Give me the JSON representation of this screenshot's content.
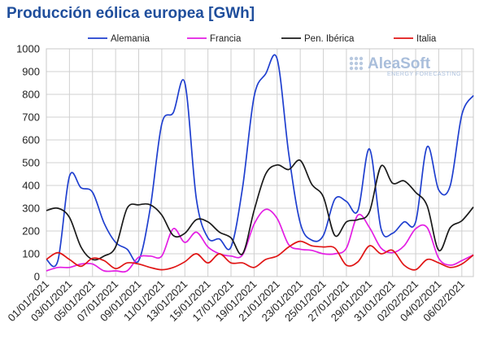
{
  "title": "Producción eólica europea [GWh]",
  "logo": {
    "name": "AleaSoft",
    "tagline": "ENERGY FORECASTING"
  },
  "chart_data": {
    "type": "line",
    "title": "Producción eólica europea [GWh]",
    "xlabel": "",
    "ylabel": "",
    "ylim": [
      0,
      1000
    ],
    "yticks": [
      0,
      100,
      200,
      300,
      400,
      500,
      600,
      700,
      800,
      900,
      1000
    ],
    "grid": true,
    "legend_position": "top",
    "x": [
      "01/01/2021",
      "02/01/2021",
      "03/01/2021",
      "04/01/2021",
      "05/01/2021",
      "06/01/2021",
      "07/01/2021",
      "08/01/2021",
      "09/01/2021",
      "10/01/2021",
      "11/01/2021",
      "12/01/2021",
      "13/01/2021",
      "14/01/2021",
      "15/01/2021",
      "16/01/2021",
      "17/01/2021",
      "18/01/2021",
      "19/01/2021",
      "20/01/2021",
      "21/01/2021",
      "22/01/2021",
      "23/01/2021",
      "24/01/2021",
      "25/01/2021",
      "26/01/2021",
      "27/01/2021",
      "28/01/2021",
      "29/01/2021",
      "30/01/2021",
      "31/01/2021",
      "01/02/2021",
      "02/02/2021",
      "03/02/2021",
      "04/02/2021",
      "05/02/2021",
      "06/02/2021",
      "07/02/2021"
    ],
    "xtick_labels": [
      "01/01/2021",
      "03/01/2021",
      "05/01/2021",
      "07/01/2021",
      "09/01/2021",
      "11/01/2021",
      "13/01/2021",
      "15/01/2021",
      "17/01/2021",
      "19/01/2021",
      "21/01/2021",
      "23/01/2021",
      "25/01/2021",
      "27/01/2021",
      "29/01/2021",
      "31/01/2021",
      "02/02/2021",
      "04/02/2021",
      "06/02/2021"
    ],
    "series": [
      {
        "name": "Alemania",
        "color": "#1f3fcf",
        "values": [
          75,
          70,
          440,
          390,
          370,
          235,
          150,
          120,
          70,
          300,
          670,
          720,
          850,
          340,
          170,
          165,
          130,
          390,
          790,
          890,
          955,
          540,
          235,
          160,
          180,
          340,
          330,
          290,
          560,
          210,
          190,
          240,
          240,
          570,
          380,
          400,
          710,
          795
        ]
      },
      {
        "name": "Francia",
        "color": "#e31ee3",
        "values": [
          25,
          40,
          40,
          55,
          55,
          25,
          25,
          25,
          85,
          90,
          90,
          210,
          150,
          195,
          130,
          100,
          90,
          95,
          230,
          295,
          255,
          140,
          120,
          115,
          100,
          100,
          125,
          270,
          215,
          125,
          105,
          135,
          210,
          215,
          80,
          50,
          70,
          95
        ]
      },
      {
        "name": "Pen. Ibérica",
        "color": "#1a1a1a",
        "values": [
          290,
          300,
          260,
          130,
          75,
          90,
          130,
          300,
          315,
          315,
          270,
          180,
          190,
          250,
          240,
          195,
          170,
          100,
          290,
          450,
          490,
          470,
          510,
          405,
          350,
          180,
          240,
          250,
          285,
          485,
          410,
          420,
          370,
          310,
          115,
          215,
          245,
          305
        ]
      },
      {
        "name": "Italia",
        "color": "#e01515",
        "values": [
          75,
          105,
          75,
          45,
          80,
          70,
          35,
          60,
          55,
          40,
          30,
          40,
          65,
          100,
          60,
          100,
          60,
          60,
          40,
          75,
          90,
          130,
          155,
          135,
          130,
          125,
          50,
          65,
          135,
          100,
          115,
          50,
          30,
          75,
          60,
          40,
          55,
          95
        ]
      }
    ]
  }
}
